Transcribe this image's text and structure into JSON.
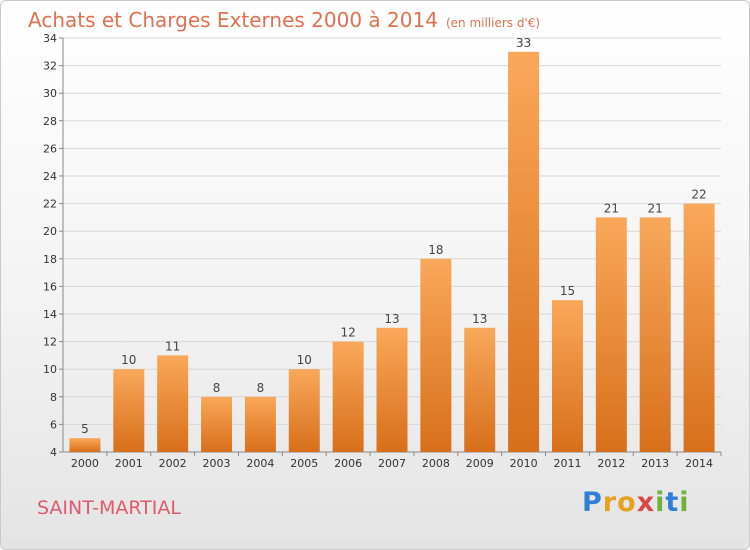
{
  "header": {
    "title": "Achats et Charges Externes 2000 à 2014",
    "subtitle": "(en milliers d'€)"
  },
  "place": "SAINT-MARTIAL",
  "logo": {
    "letters": [
      "P",
      "r",
      "o",
      "x",
      "i",
      "t",
      "i"
    ],
    "colors": [
      "#2f7fd6",
      "#e8a020",
      "#e8a020",
      "#d94848",
      "#6cb43a",
      "#2f7fd6",
      "#6cb43a"
    ]
  },
  "chart_data": {
    "type": "bar",
    "categories": [
      "2000",
      "2001",
      "2002",
      "2003",
      "2004",
      "2005",
      "2006",
      "2007",
      "2008",
      "2009",
      "2010",
      "2011",
      "2012",
      "2013",
      "2014"
    ],
    "values": [
      5,
      10,
      11,
      8,
      8,
      10,
      12,
      13,
      18,
      13,
      33,
      15,
      21,
      21,
      22
    ],
    "data_labels": [
      "5",
      "10",
      "11",
      "8",
      "8",
      "10",
      "12",
      "13",
      "18",
      "13",
      "33",
      "15",
      "21",
      "21",
      "22"
    ],
    "yticks": [
      "4",
      "6",
      "8",
      "10",
      "12",
      "14",
      "16",
      "18",
      "20",
      "22",
      "24",
      "26",
      "28",
      "30",
      "32",
      "34"
    ],
    "ylim": [
      4,
      34
    ],
    "grid": true,
    "bar_color_top": "#f9a85a",
    "bar_color_bottom": "#d86f1a"
  }
}
